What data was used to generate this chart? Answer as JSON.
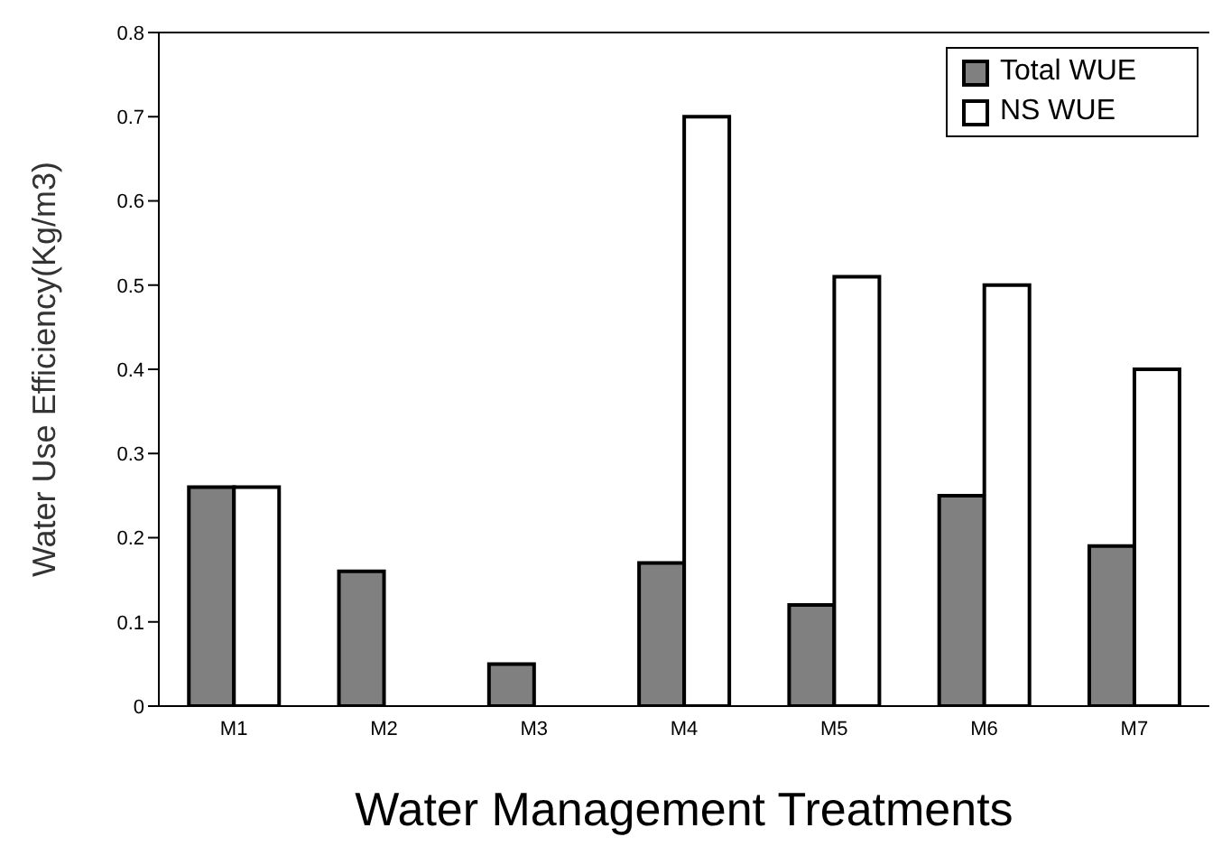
{
  "chart_data": {
    "type": "bar",
    "xlabel": "Water Management Treatments",
    "ylabel": "Water Use Efficiency(Kg/m3)",
    "categories": [
      "M1",
      "M2",
      "M3",
      "M4",
      "M5",
      "M6",
      "M7"
    ],
    "series": [
      {
        "name": "Total WUE",
        "color": "#808080",
        "values": [
          0.26,
          0.16,
          0.05,
          0.17,
          0.12,
          0.25,
          0.19
        ]
      },
      {
        "name": "NS WUE",
        "color": "#ffffff",
        "values": [
          0.26,
          null,
          null,
          0.7,
          0.51,
          0.5,
          0.4
        ]
      }
    ],
    "ylim": [
      0,
      0.8
    ],
    "yticks": [
      0,
      0.1,
      0.2,
      0.3,
      0.4,
      0.5,
      0.6,
      0.7,
      0.8
    ],
    "grid": false,
    "legend": "top right"
  }
}
